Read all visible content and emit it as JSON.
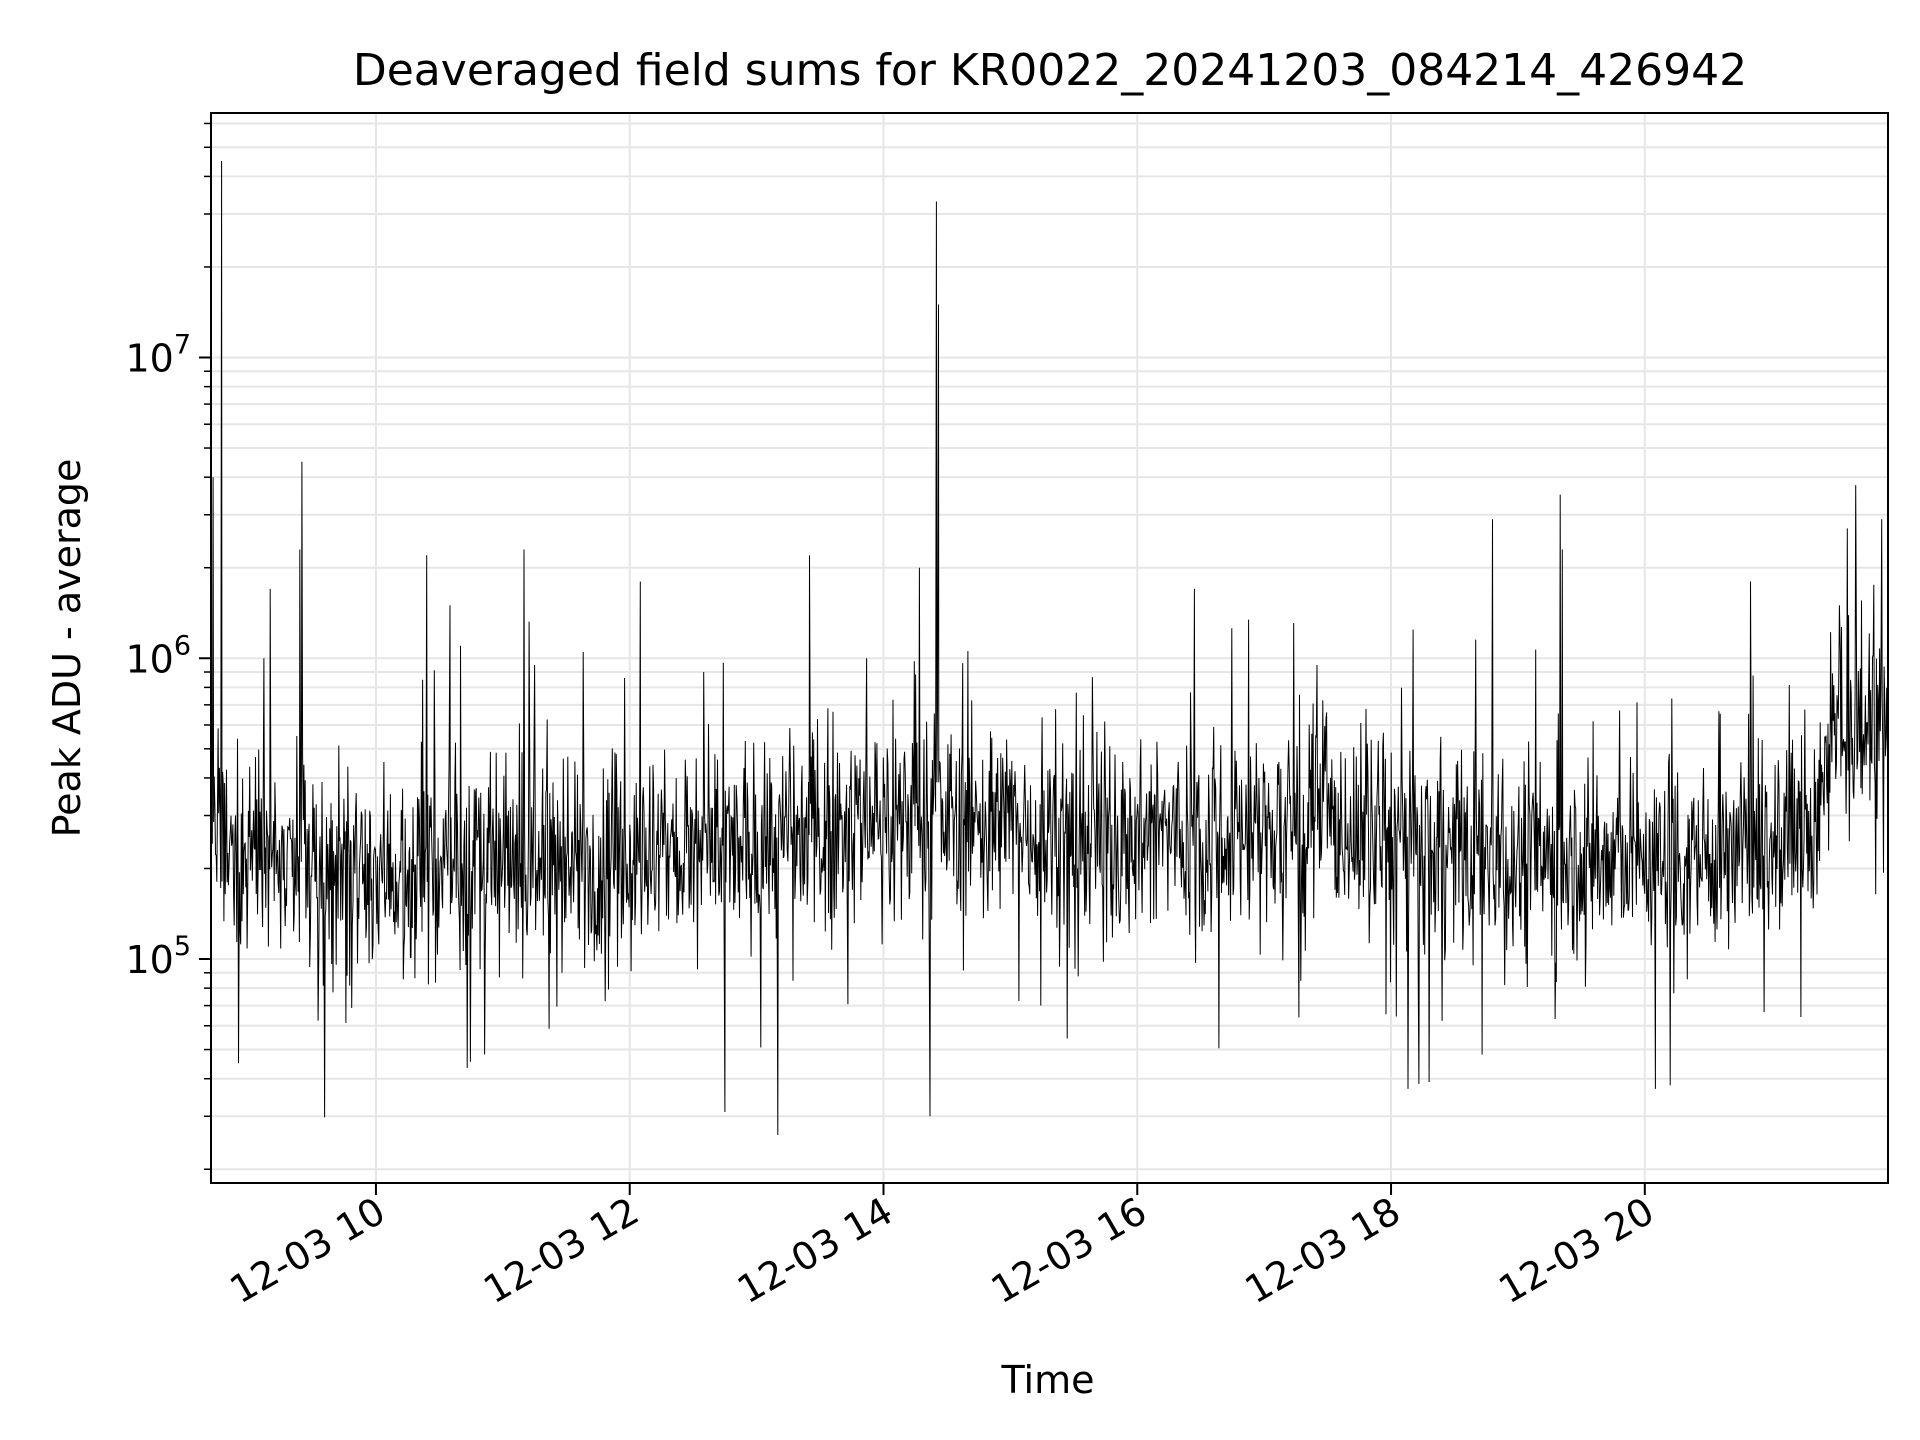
{
  "chart_data": {
    "type": "line",
    "title": "Deaveraged field sums for KR0022_20241203_084214_426942",
    "xlabel": "Time",
    "ylabel": "Peak ADU - average",
    "x_range": [
      "2024-12-03 08:42",
      "2024-12-03 21:55"
    ],
    "x_ticks": [
      {
        "t": "2024-12-03 10:00",
        "label": "12-03 10"
      },
      {
        "t": "2024-12-03 12:00",
        "label": "12-03 12"
      },
      {
        "t": "2024-12-03 14:00",
        "label": "12-03 14"
      },
      {
        "t": "2024-12-03 16:00",
        "label": "12-03 16"
      },
      {
        "t": "2024-12-03 18:00",
        "label": "12-03 18"
      },
      {
        "t": "2024-12-03 20:00",
        "label": "12-03 20"
      }
    ],
    "y_scale": "log",
    "ylim": [
      18000,
      65000000
    ],
    "y_ticks": [
      {
        "value": 100000,
        "base": "10",
        "exp": "5"
      },
      {
        "value": 1000000,
        "base": "10",
        "exp": "6"
      },
      {
        "value": 10000000,
        "base": "10",
        "exp": "7"
      }
    ],
    "grid": true,
    "line_color": "#000000",
    "baseline": [
      [
        "2024-12-03 08:42",
        230000
      ],
      [
        "2024-12-03 09:05",
        260000
      ],
      [
        "2024-12-03 09:20",
        180000
      ],
      [
        "2024-12-03 10:00",
        200000
      ],
      [
        "2024-12-03 11:00",
        200000
      ],
      [
        "2024-12-03 12:00",
        220000
      ],
      [
        "2024-12-03 13:00",
        230000
      ],
      [
        "2024-12-03 13:50",
        300000
      ],
      [
        "2024-12-03 14:30",
        300000
      ],
      [
        "2024-12-03 15:30",
        260000
      ],
      [
        "2024-12-03 16:30",
        260000
      ],
      [
        "2024-12-03 17:30",
        280000
      ],
      [
        "2024-12-03 18:30",
        230000
      ],
      [
        "2024-12-03 19:30",
        210000
      ],
      [
        "2024-12-03 20:30",
        220000
      ],
      [
        "2024-12-03 21:20",
        270000
      ],
      [
        "2024-12-03 21:28",
        580000
      ],
      [
        "2024-12-03 21:55",
        580000
      ]
    ],
    "peaks": [
      [
        "2024-12-03 08:43",
        4000000
      ],
      [
        "2024-12-03 08:47",
        45000000
      ],
      [
        "2024-12-03 09:07",
        1000000
      ],
      [
        "2024-12-03 09:10",
        1700000
      ],
      [
        "2024-12-03 09:24",
        2300000
      ],
      [
        "2024-12-03 09:25",
        4500000
      ],
      [
        "2024-12-03 10:24",
        2200000
      ],
      [
        "2024-12-03 10:35",
        1500000
      ],
      [
        "2024-12-03 10:40",
        1100000
      ],
      [
        "2024-12-03 11:10",
        2300000
      ],
      [
        "2024-12-03 11:15",
        950000
      ],
      [
        "2024-12-03 11:38",
        1050000
      ],
      [
        "2024-12-03 12:05",
        1800000
      ],
      [
        "2024-12-03 12:35",
        900000
      ],
      [
        "2024-12-03 13:25",
        2200000
      ],
      [
        "2024-12-03 13:52",
        1000000
      ],
      [
        "2024-12-03 14:17",
        2000000
      ],
      [
        "2024-12-03 14:25",
        33000000
      ],
      [
        "2024-12-03 14:26",
        15000000
      ],
      [
        "2024-12-03 16:27",
        1700000
      ],
      [
        "2024-12-03 17:25",
        950000
      ],
      [
        "2024-12-03 18:48",
        2900000
      ],
      [
        "2024-12-03 19:20",
        3500000
      ],
      [
        "2024-12-03 19:21",
        2300000
      ],
      [
        "2024-12-03 20:50",
        1800000
      ],
      [
        "2024-12-03 21:32",
        1500000
      ],
      [
        "2024-12-03 21:52",
        2900000
      ]
    ],
    "dips": [
      [
        "2024-12-03 08:55",
        45000
      ],
      [
        "2024-12-03 12:45",
        31000
      ],
      [
        "2024-12-03 13:10",
        26000
      ],
      [
        "2024-12-03 14:22",
        30000
      ],
      [
        "2024-12-03 18:08",
        37000
      ],
      [
        "2024-12-03 18:18",
        39000
      ],
      [
        "2024-12-03 20:05",
        37000
      ],
      [
        "2024-12-03 20:12",
        38000
      ]
    ]
  }
}
